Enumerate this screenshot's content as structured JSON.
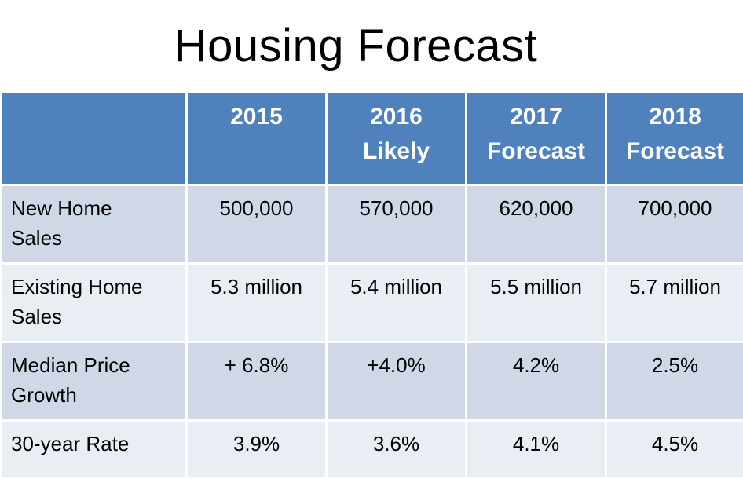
{
  "title": "Housing Forecast",
  "table": {
    "columns": [
      {
        "lines": [
          ""
        ]
      },
      {
        "lines": [
          "2015"
        ]
      },
      {
        "lines": [
          "2016",
          "Likely"
        ]
      },
      {
        "lines": [
          "2017",
          "Forecast"
        ]
      },
      {
        "lines": [
          "2018",
          "Forecast"
        ]
      }
    ],
    "rows": [
      {
        "label_lines": [
          "New Home",
          "Sales"
        ],
        "values": [
          "500,000",
          "570,000",
          "620,000",
          "700,000"
        ]
      },
      {
        "label_lines": [
          "Existing Home",
          "Sales"
        ],
        "values": [
          "5.3 million",
          "5.4 million",
          "5.5 million",
          "5.7 million"
        ]
      },
      {
        "label_lines": [
          "Median Price",
          "Growth"
        ],
        "values": [
          "+ 6.8%",
          "+4.0%",
          "4.2%",
          "2.5%"
        ]
      },
      {
        "label_lines": [
          "30-year Rate"
        ],
        "values": [
          "3.9%",
          "3.6%",
          "4.1%",
          "4.5%"
        ]
      }
    ]
  },
  "colors": {
    "header_bg": "#4f81bd",
    "row_odd_bg": "#d0d8e8",
    "row_even_bg": "#e9edf4"
  }
}
